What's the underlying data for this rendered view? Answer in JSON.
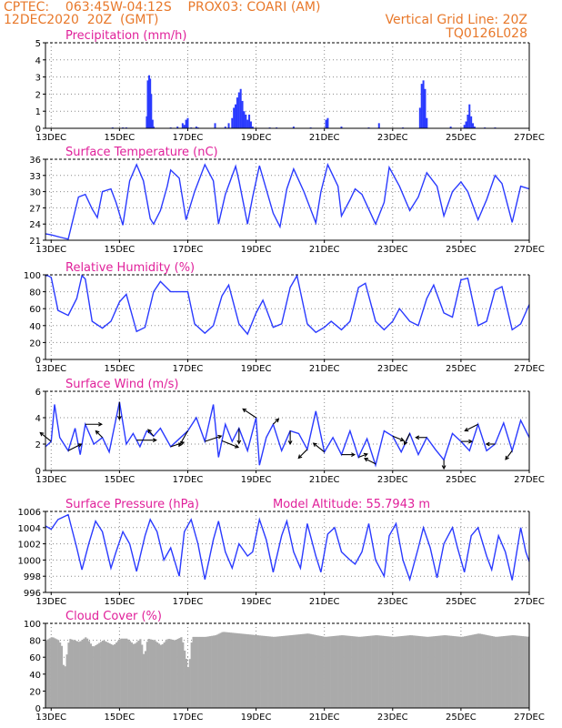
{
  "header": {
    "line1": "CPTEC:    063:45W-04:12S    PROX03: COARI (AM)",
    "line2": "12DEC2020  20Z  (GMT)",
    "grid_note": "Vertical Grid Line: 20Z",
    "code": "TQ0126L028"
  },
  "colors": {
    "header": "#e8782a",
    "panel_title": "#e0209a",
    "series": "#2a3aff",
    "arrows": "#000000",
    "cloud": "#aaaaaa",
    "grid": "#8a8a8a"
  },
  "chart_data": [
    {
      "id": "precip",
      "type": "bar",
      "title": "Precipitation (mm/h)",
      "ylim": [
        0,
        5
      ],
      "yticks": [
        0,
        1,
        2,
        3,
        4,
        5
      ],
      "xlim": [
        12.833,
        27.0
      ],
      "xticks": [
        13,
        15,
        17,
        19,
        21,
        23,
        25,
        27
      ],
      "xtick_labels": [
        "13DEC",
        "15DEC",
        "17DEC",
        "19DEC",
        "21DEC",
        "23DEC",
        "25DEC",
        "27DEC"
      ],
      "grid": true,
      "x": [
        14.8,
        15.1,
        15.2,
        15.8,
        15.83,
        15.87,
        15.9,
        15.93,
        15.97,
        16.0,
        16.5,
        16.7,
        16.85,
        16.9,
        16.95,
        17.0,
        17.1,
        17.25,
        17.3,
        17.8,
        18.1,
        18.2,
        18.3,
        18.35,
        18.4,
        18.45,
        18.5,
        18.55,
        18.6,
        18.65,
        18.7,
        18.75,
        18.8,
        18.85,
        18.9,
        19.4,
        19.6,
        20.1,
        20.6,
        21.05,
        21.1,
        21.5,
        22.3,
        22.6,
        23.3,
        23.8,
        23.85,
        23.9,
        23.95,
        24.0,
        24.7,
        25.1,
        25.15,
        25.2,
        25.25,
        25.3,
        25.35,
        25.4,
        25.7,
        26.0
      ],
      "y": [
        0.05,
        0.05,
        0.05,
        0.7,
        2.8,
        3.1,
        2.9,
        2.0,
        0.5,
        0.1,
        0.05,
        0.1,
        0.3,
        0.2,
        0.5,
        0.6,
        0.05,
        0.1,
        0.05,
        0.3,
        0.1,
        0.3,
        0.6,
        1.2,
        1.4,
        1.8,
        2.1,
        2.3,
        1.6,
        1.0,
        0.8,
        0.5,
        0.8,
        0.4,
        0.1,
        0.05,
        0.05,
        0.1,
        0.05,
        0.5,
        0.6,
        0.1,
        0.05,
        0.3,
        0.05,
        1.2,
        2.6,
        2.8,
        2.3,
        0.6,
        0.1,
        0.2,
        0.4,
        0.8,
        1.4,
        0.7,
        0.3,
        0.1,
        0.05,
        0.05
      ]
    },
    {
      "id": "temp",
      "type": "line",
      "title": "Surface Temperature (nC)",
      "ylim": [
        21,
        36
      ],
      "yticks": [
        21,
        24,
        27,
        30,
        33,
        36
      ],
      "xlim": [
        12.833,
        27.0
      ],
      "xticks": [
        13,
        15,
        17,
        19,
        21,
        23,
        25,
        27
      ],
      "xtick_labels": [
        "13DEC",
        "15DEC",
        "17DEC",
        "19DEC",
        "21DEC",
        "23DEC",
        "25DEC",
        "27DEC"
      ],
      "grid": true,
      "x": [
        12.833,
        13.0,
        13.3,
        13.5,
        13.8,
        14.0,
        14.2,
        14.35,
        14.5,
        14.75,
        14.9,
        15.1,
        15.3,
        15.5,
        15.7,
        15.9,
        16.0,
        16.2,
        16.4,
        16.5,
        16.75,
        16.95,
        17.2,
        17.5,
        17.75,
        17.9,
        18.1,
        18.4,
        18.5,
        18.75,
        18.9,
        19.1,
        19.5,
        19.7,
        19.9,
        20.1,
        20.4,
        20.75,
        20.9,
        21.1,
        21.4,
        21.5,
        21.75,
        21.9,
        22.1,
        22.5,
        22.75,
        22.9,
        23.2,
        23.5,
        23.75,
        24.0,
        24.3,
        24.5,
        24.75,
        25.0,
        25.2,
        25.5,
        25.75,
        26.0,
        26.2,
        26.5,
        26.75,
        27.0
      ],
      "y": [
        22.2,
        22.0,
        21.5,
        21.2,
        29.0,
        29.5,
        26.8,
        25.2,
        30.0,
        30.5,
        28.0,
        23.8,
        32.0,
        35.0,
        32.0,
        25.0,
        24.0,
        26.5,
        31.0,
        34.0,
        32.5,
        24.8,
        30.0,
        35.0,
        32.0,
        24.0,
        29.5,
        34.7,
        32.0,
        24.0,
        29.0,
        34.8,
        26.0,
        23.5,
        30.5,
        34.2,
        30.0,
        24.2,
        30.0,
        35.0,
        31.0,
        25.5,
        28.5,
        30.5,
        29.5,
        24.0,
        28.0,
        34.5,
        31.0,
        26.5,
        29.0,
        33.5,
        31.0,
        25.5,
        30.0,
        31.8,
        30.0,
        24.8,
        28.5,
        33.0,
        31.5,
        24.3,
        31.0,
        30.5
      ]
    },
    {
      "id": "rh",
      "type": "line",
      "title": "Relative Humidity (%)",
      "ylim": [
        0,
        100
      ],
      "yticks": [
        0,
        20,
        40,
        60,
        80,
        100
      ],
      "xlim": [
        12.833,
        27.0
      ],
      "xticks": [
        13,
        15,
        17,
        19,
        21,
        23,
        25,
        27
      ],
      "xtick_labels": [
        "13DEC",
        "15DEC",
        "17DEC",
        "19DEC",
        "21DEC",
        "23DEC",
        "25DEC",
        "27DEC"
      ],
      "grid": true,
      "x": [
        12.833,
        12.9,
        13.0,
        13.2,
        13.5,
        13.75,
        13.9,
        14.0,
        14.2,
        14.5,
        14.75,
        15.0,
        15.2,
        15.5,
        15.75,
        16.0,
        16.2,
        16.5,
        16.75,
        17.0,
        17.2,
        17.5,
        17.75,
        18.0,
        18.2,
        18.5,
        18.75,
        19.0,
        19.2,
        19.5,
        19.75,
        20.0,
        20.2,
        20.5,
        20.75,
        21.0,
        21.2,
        21.5,
        21.75,
        22.0,
        22.2,
        22.5,
        22.75,
        23.0,
        23.2,
        23.5,
        23.75,
        24.0,
        24.2,
        24.5,
        24.75,
        25.0,
        25.2,
        25.5,
        25.75,
        26.0,
        26.2,
        26.5,
        26.75,
        27.0
      ],
      "y": [
        99,
        99,
        97,
        58,
        52,
        72,
        99,
        95,
        45,
        37,
        45,
        68,
        77,
        33,
        38,
        80,
        92,
        80,
        80,
        80,
        42,
        31,
        40,
        75,
        88,
        42,
        30,
        55,
        70,
        38,
        42,
        85,
        99,
        42,
        32,
        38,
        45,
        35,
        45,
        85,
        90,
        45,
        35,
        45,
        60,
        45,
        40,
        72,
        88,
        55,
        50,
        94,
        96,
        40,
        45,
        82,
        86,
        35,
        42,
        65
      ]
    },
    {
      "id": "wind",
      "type": "line",
      "title": "Surface Wind (m/s)",
      "ylim": [
        0,
        6
      ],
      "yticks": [
        0,
        2,
        4,
        6
      ],
      "xlim": [
        12.833,
        27.0
      ],
      "xticks": [
        13,
        15,
        17,
        19,
        21,
        23,
        25,
        27
      ],
      "xtick_labels": [
        "13DEC",
        "15DEC",
        "17DEC",
        "19DEC",
        "21DEC",
        "23DEC",
        "25DEC",
        "27DEC"
      ],
      "grid": true,
      "x": [
        12.833,
        13.0,
        13.1,
        13.25,
        13.5,
        13.7,
        13.85,
        14.0,
        14.25,
        14.5,
        14.7,
        15.0,
        15.2,
        15.4,
        15.6,
        15.8,
        16.0,
        16.2,
        16.5,
        16.75,
        17.0,
        17.25,
        17.5,
        17.75,
        17.9,
        18.1,
        18.3,
        18.5,
        18.75,
        19.0,
        19.1,
        19.3,
        19.5,
        19.75,
        20.0,
        20.25,
        20.5,
        20.75,
        21.0,
        21.25,
        21.5,
        21.75,
        22.0,
        22.25,
        22.5,
        22.75,
        23.0,
        23.25,
        23.5,
        23.75,
        24.0,
        24.25,
        24.5,
        24.75,
        25.0,
        25.25,
        25.5,
        25.75,
        26.0,
        26.25,
        26.5,
        26.75,
        27.0
      ],
      "y": [
        1.8,
        2.2,
        5.0,
        2.5,
        1.5,
        3.2,
        1.2,
        3.5,
        2.0,
        2.5,
        1.4,
        5.2,
        2.0,
        2.8,
        1.8,
        3.0,
        2.6,
        3.2,
        1.8,
        2.4,
        3.0,
        4.0,
        2.2,
        5.0,
        1.0,
        3.5,
        2.2,
        3.2,
        1.5,
        4.0,
        0.4,
        2.5,
        3.5,
        1.5,
        3.0,
        2.8,
        1.6,
        4.5,
        1.4,
        2.5,
        1.2,
        3.0,
        1.0,
        2.4,
        0.4,
        3.0,
        2.6,
        1.4,
        2.8,
        1.2,
        2.5,
        1.6,
        0.8,
        2.8,
        2.2,
        1.5,
        3.5,
        1.5,
        2.0,
        3.6,
        1.5,
        3.8,
        2.5
      ],
      "vectors": {
        "x": [
          13.0,
          13.5,
          14.0,
          14.5,
          15.0,
          15.5,
          16.0,
          16.5,
          17.0,
          17.5,
          18.0,
          18.5,
          19.0,
          19.5,
          20.0,
          20.5,
          21.0,
          21.5,
          22.0,
          22.5,
          23.0,
          23.5,
          24.0,
          24.5,
          25.0,
          25.5,
          26.0,
          26.5
        ],
        "u": [
          -1.0,
          1.2,
          1.5,
          -0.6,
          0.0,
          1.8,
          -0.5,
          1.2,
          -0.8,
          1.5,
          1.5,
          0.0,
          -1.2,
          0.5,
          0.0,
          -0.8,
          -1.0,
          1.2,
          0.8,
          -1.0,
          1.0,
          -0.5,
          -1.0,
          0.0,
          1.0,
          -1.2,
          -0.8,
          -0.6
        ],
        "v": [
          0.8,
          0.6,
          0.0,
          0.6,
          -1.6,
          0.0,
          0.6,
          0.4,
          -1.4,
          0.5,
          -0.6,
          -1.4,
          0.8,
          0.5,
          -1.2,
          -0.8,
          0.8,
          0.0,
          0.3,
          0.5,
          -0.4,
          -1.0,
          0.0,
          -0.8,
          0.0,
          -0.6,
          0.0,
          -0.8
        ]
      }
    },
    {
      "id": "pres",
      "type": "line",
      "title": "Surface Pressure (hPa)",
      "annotation": "Model Altitude: 55.7943 m",
      "ylim": [
        996,
        1006
      ],
      "yticks": [
        996,
        998,
        1000,
        1002,
        1004,
        1006
      ],
      "xlim": [
        12.833,
        27.0
      ],
      "xticks": [
        13,
        15,
        17,
        19,
        21,
        23,
        25,
        27
      ],
      "xtick_labels": [
        "13DEC",
        "15DEC",
        "17DEC",
        "19DEC",
        "21DEC",
        "23DEC",
        "25DEC",
        "27DEC"
      ],
      "grid": true,
      "x": [
        12.833,
        13.0,
        13.2,
        13.5,
        13.75,
        13.9,
        14.1,
        14.3,
        14.5,
        14.75,
        14.9,
        15.1,
        15.3,
        15.5,
        15.75,
        15.9,
        16.1,
        16.3,
        16.5,
        16.75,
        16.9,
        17.1,
        17.3,
        17.5,
        17.75,
        17.9,
        18.1,
        18.3,
        18.5,
        18.75,
        18.9,
        19.1,
        19.3,
        19.5,
        19.75,
        19.9,
        20.1,
        20.3,
        20.5,
        20.75,
        20.9,
        21.1,
        21.3,
        21.5,
        21.75,
        21.9,
        22.1,
        22.3,
        22.5,
        22.75,
        22.9,
        23.1,
        23.3,
        23.5,
        23.75,
        23.9,
        24.1,
        24.3,
        24.5,
        24.75,
        24.9,
        25.1,
        25.3,
        25.5,
        25.75,
        25.9,
        26.1,
        26.3,
        26.5,
        26.75,
        26.9,
        27.0
      ],
      "y": [
        1004.2,
        1003.8,
        1005.0,
        1005.6,
        1001.5,
        998.8,
        1002.0,
        1004.8,
        1003.5,
        999.0,
        1001.0,
        1003.5,
        1002.0,
        998.6,
        1003.0,
        1005.0,
        1003.5,
        1000.0,
        1001.5,
        998.0,
        1003.5,
        1005.0,
        1002.0,
        997.6,
        1002.5,
        1004.8,
        1001.0,
        999.0,
        1002.0,
        1000.5,
        1001.0,
        1005.0,
        1002.5,
        998.5,
        1003.0,
        1004.8,
        1001.0,
        999.0,
        1004.5,
        1000.5,
        998.5,
        1003.2,
        1004.0,
        1001.0,
        1000.0,
        999.5,
        1001.0,
        1004.5,
        1000.0,
        998.0,
        1003.0,
        1004.5,
        1000.0,
        997.6,
        1001.5,
        1004.0,
        1001.5,
        997.8,
        1002.0,
        1004.0,
        1001.5,
        998.5,
        1003.0,
        1004.0,
        1000.5,
        998.8,
        1003.0,
        1001.0,
        997.5,
        1004.0,
        1001.0,
        999.8
      ]
    },
    {
      "id": "cloud",
      "type": "area",
      "title": "Cloud Cover (%)",
      "ylim": [
        0,
        100
      ],
      "yticks": [
        0,
        20,
        40,
        60,
        80,
        100
      ],
      "xlim": [
        12.833,
        27.0
      ],
      "xticks": [
        13,
        15,
        17,
        19,
        21,
        23,
        25,
        27
      ],
      "xtick_labels": [
        "13DEC",
        "15DEC",
        "17DEC",
        "19DEC",
        "21DEC",
        "23DEC",
        "25DEC",
        "27DEC"
      ],
      "grid": true,
      "x": [
        12.833,
        13.0,
        13.2,
        13.3,
        13.35,
        13.5,
        13.8,
        14.0,
        14.2,
        14.5,
        14.8,
        15.0,
        15.2,
        15.4,
        15.6,
        15.7,
        15.8,
        16.0,
        16.2,
        16.4,
        16.6,
        16.8,
        17.0,
        17.1,
        17.3,
        17.5,
        17.8,
        18.0,
        18.5,
        19.0,
        19.5,
        20.0,
        20.5,
        21.0,
        21.5,
        22.0,
        22.5,
        23.0,
        23.5,
        24.0,
        24.5,
        25.0,
        25.5,
        26.0,
        26.5,
        27.0
      ],
      "y": [
        80,
        84,
        80,
        72,
        40,
        82,
        78,
        84,
        72,
        80,
        74,
        82,
        82,
        75,
        82,
        60,
        82,
        80,
        74,
        82,
        80,
        84,
        45,
        84,
        84,
        84,
        86,
        90,
        88,
        86,
        84,
        86,
        88,
        84,
        86,
        84,
        86,
        84,
        86,
        84,
        86,
        84,
        88,
        84,
        86,
        84
      ]
    }
  ]
}
